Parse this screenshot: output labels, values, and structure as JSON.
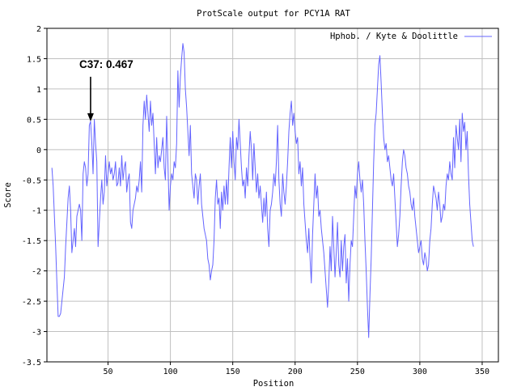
{
  "chart_data": {
    "type": "line",
    "title": "ProtScale output for PCY1A RAT",
    "xlabel": "Position",
    "ylabel": "Score",
    "xlim": [
      1,
      363
    ],
    "ylim": [
      -3.5,
      2
    ],
    "grid": true,
    "legend_position": "top-right",
    "x_ticks": [
      50,
      100,
      150,
      200,
      250,
      300,
      350
    ],
    "y_ticks": [
      -3.5,
      -3,
      -2.5,
      -2,
      -1.5,
      -1,
      -0.5,
      0,
      0.5,
      1,
      1.5,
      2
    ],
    "x_tick_labels": [
      "50",
      "100",
      "150",
      "200",
      "250",
      "300",
      "350"
    ],
    "y_tick_labels": [
      "-3.5",
      "-3",
      "-2.5",
      "-2",
      "-1.5",
      "-1",
      "-0.5",
      "0",
      "0.5",
      "1",
      "1.5",
      "2"
    ],
    "series": [
      {
        "name": "Hphob. / Kyte & Doolittle",
        "color": "#6464ff",
        "x_start": 5,
        "x_step": 1,
        "values": [
          -0.3,
          -0.6,
          -1.1,
          -1.6,
          -2.2,
          -2.75,
          -2.75,
          -2.7,
          -2.5,
          -2.3,
          -2.1,
          -1.6,
          -1.2,
          -0.8,
          -0.6,
          -1.0,
          -1.7,
          -1.5,
          -1.3,
          -1.6,
          -1.1,
          -1.0,
          -0.9,
          -1.0,
          -1.5,
          -0.4,
          -0.2,
          -0.3,
          -0.6,
          -0.4,
          0.4,
          0.467,
          0.1,
          -0.4,
          0.5,
          0.1,
          -0.2,
          -1.6,
          -1.2,
          -0.8,
          -0.5,
          -0.9,
          -0.7,
          -0.1,
          -0.6,
          -0.4,
          -0.2,
          -0.4,
          -0.3,
          -0.5,
          -0.4,
          -0.2,
          -0.6,
          -0.55,
          -0.3,
          -0.6,
          -0.1,
          -0.5,
          -0.3,
          -0.2,
          -0.7,
          -0.5,
          -0.4,
          -1.2,
          -1.3,
          -1.0,
          -0.9,
          -0.8,
          -0.6,
          -0.7,
          -0.5,
          -0.2,
          -0.7,
          0.4,
          0.8,
          0.5,
          0.9,
          0.6,
          0.3,
          0.8,
          0.4,
          0.6,
          0.1,
          -0.4,
          0.2,
          -0.3,
          -0.1,
          -0.2,
          0.0,
          0.2,
          -0.3,
          -0.5,
          0.55,
          -0.2,
          -1.0,
          -0.6,
          -0.4,
          -0.5,
          -0.2,
          -0.3,
          0.1,
          1.3,
          0.7,
          1.2,
          1.5,
          1.75,
          1.6,
          1.0,
          0.7,
          0.3,
          -0.1,
          0.4,
          -0.4,
          -0.6,
          -0.8,
          -0.4,
          -0.5,
          -0.9,
          -0.6,
          -0.4,
          -0.9,
          -1.1,
          -1.3,
          -1.4,
          -1.5,
          -1.8,
          -1.9,
          -2.15,
          -2.0,
          -1.9,
          -1.5,
          -0.8,
          -0.5,
          -0.9,
          -0.8,
          -1.3,
          -0.7,
          -1.0,
          -0.6,
          -0.9,
          -0.5,
          -0.9,
          -0.3,
          0.2,
          -0.3,
          0.3,
          -0.2,
          -0.5,
          0.2,
          0.0,
          0.5,
          0.1,
          -0.3,
          -0.6,
          -0.5,
          -0.8,
          -0.3,
          -0.6,
          -0.1,
          0.3,
          0.0,
          -0.5,
          0.1,
          -0.3,
          -0.7,
          -0.4,
          -0.8,
          -0.6,
          -0.9,
          -1.2,
          -0.8,
          -1.1,
          -0.7,
          -1.3,
          -1.6,
          -1.0,
          -0.9,
          -0.7,
          -0.4,
          -0.6,
          -0.2,
          0.4,
          -0.5,
          -0.9,
          -1.1,
          -0.4,
          -0.7,
          -0.9,
          -0.6,
          -0.2,
          0.3,
          0.6,
          0.8,
          0.4,
          0.6,
          0.3,
          0.1,
          0.2,
          -0.4,
          -0.2,
          -0.6,
          -0.3,
          -0.9,
          -1.2,
          -1.5,
          -1.7,
          -1.3,
          -1.8,
          -2.2,
          -1.4,
          -0.9,
          -0.4,
          -0.8,
          -0.6,
          -1.1,
          -1.0,
          -1.3,
          -1.5,
          -1.7,
          -2.0,
          -2.3,
          -2.6,
          -2.2,
          -1.6,
          -2.0,
          -1.1,
          -1.6,
          -2.1,
          -1.7,
          -1.2,
          -1.9,
          -2.1,
          -1.5,
          -2.0,
          -1.6,
          -1.4,
          -2.2,
          -1.8,
          -2.5,
          -1.9,
          -1.5,
          -1.6,
          -1.1,
          -0.6,
          -0.8,
          -0.4,
          -0.2,
          -0.5,
          -0.7,
          -0.5,
          -0.9,
          -1.5,
          -2.0,
          -2.6,
          -3.1,
          -2.4,
          -1.8,
          -1.0,
          -0.2,
          0.4,
          0.6,
          1.0,
          1.4,
          1.55,
          1.1,
          0.6,
          0.2,
          0.0,
          0.1,
          -0.2,
          -0.1,
          -0.3,
          -0.5,
          -0.6,
          -0.4,
          -0.8,
          -1.2,
          -1.6,
          -1.4,
          -1.1,
          -0.6,
          -0.2,
          0.0,
          -0.1,
          -0.3,
          -0.4,
          -0.6,
          -0.7,
          -0.9,
          -1.0,
          -0.8,
          -1.1,
          -1.3,
          -1.5,
          -1.7,
          -1.6,
          -1.5,
          -1.8,
          -1.9,
          -1.7,
          -1.8,
          -2.0,
          -1.9,
          -1.5,
          -1.3,
          -0.9,
          -0.6,
          -0.7,
          -0.8,
          -1.0,
          -0.7,
          -0.9,
          -1.2,
          -1.1,
          -0.9,
          -1.0,
          -0.6,
          -0.4,
          -0.5,
          -0.2,
          -0.4,
          -0.5,
          0.2,
          -0.3,
          0.4,
          0.2,
          0.0,
          0.5,
          -0.2,
          0.6,
          0.3,
          0.45,
          0.0,
          0.3,
          -0.4,
          -0.9,
          -1.2,
          -1.5,
          -1.6
        ]
      }
    ],
    "annotation": {
      "label": "C37: 0.467",
      "x": 36,
      "y": 0.467
    }
  }
}
